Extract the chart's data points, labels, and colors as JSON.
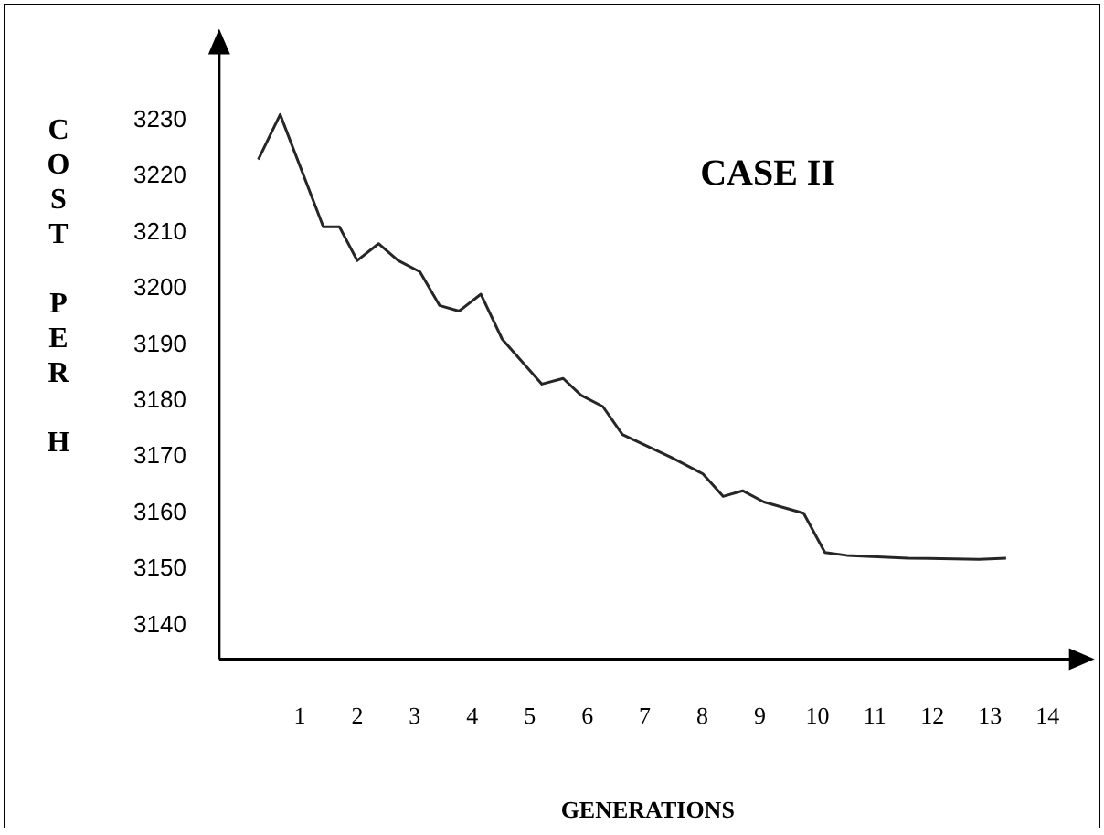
{
  "chart_data": {
    "type": "line",
    "title": "CASE II",
    "xlabel": "GENERATIONS",
    "ylabel": "COST PER H",
    "x": [
      0.28,
      0.66,
      1.41,
      1.69,
      2.0,
      2.37,
      2.71,
      3.09,
      3.43,
      3.77,
      4.15,
      4.52,
      5.21,
      5.58,
      5.89,
      6.27,
      6.61,
      7.45,
      8.01,
      8.36,
      8.7,
      9.07,
      9.76,
      10.13,
      10.51,
      11.57,
      12.81,
      13.28
    ],
    "series": [
      {
        "color": "#262626",
        "values": [
          3223,
          3231,
          3211,
          3211,
          3205,
          3208,
          3205,
          3203,
          3197,
          3196,
          3199,
          3191,
          3183,
          3184,
          3181,
          3179,
          3174,
          3170,
          3167,
          3163,
          3164,
          3162,
          3160,
          3153,
          3152.5,
          3152,
          3151.8,
          3152
        ]
      }
    ],
    "xlim": [
      -0.4,
      14.5
    ],
    "xticks": [
      1,
      2,
      3,
      4,
      5,
      6,
      7,
      8,
      9,
      10,
      11,
      12,
      13,
      14
    ],
    "ylim": [
      3134,
      3243
    ],
    "yticks": [
      3140,
      3150,
      3160,
      3170,
      3180,
      3190,
      3200,
      3210,
      3220,
      3230
    ],
    "grid": false,
    "legend": false,
    "marker": "none",
    "line_style": "solid"
  }
}
